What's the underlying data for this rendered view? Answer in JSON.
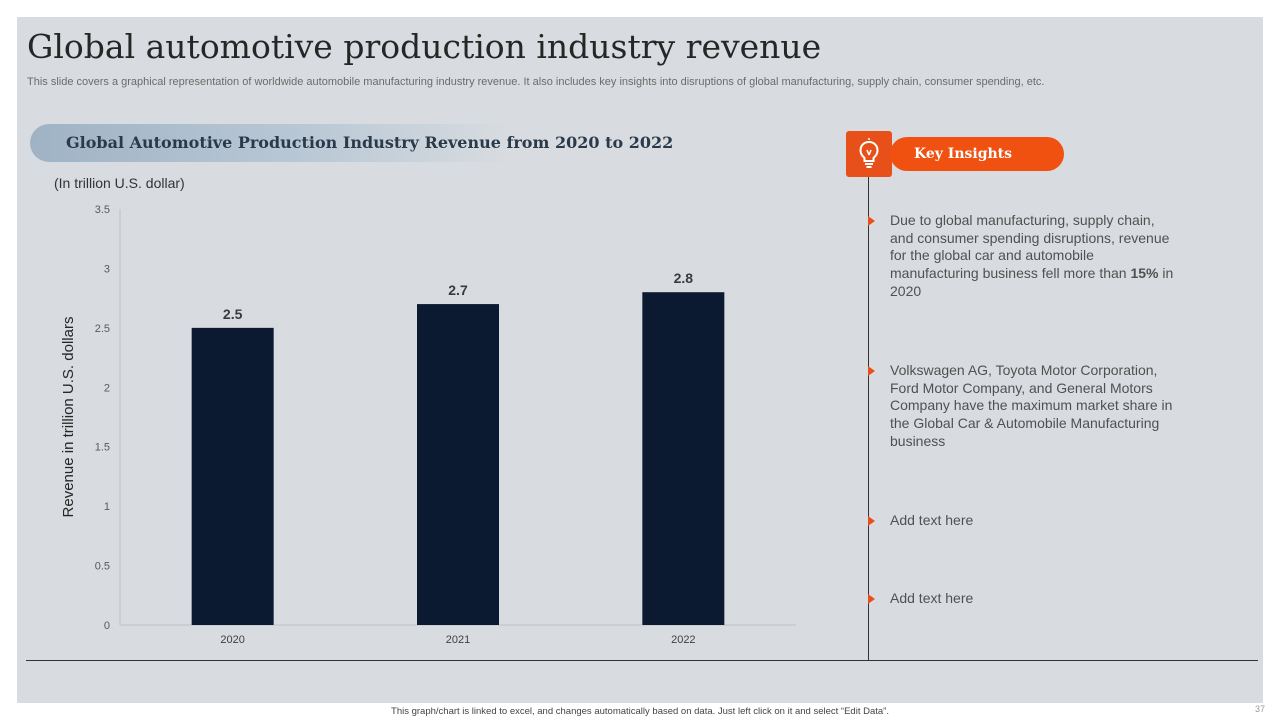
{
  "slide": {
    "title": "Global automotive production industry revenue",
    "subtitle": "This slide covers a graphical representation of worldwide automobile manufacturing industry revenue. It also includes key insights into disruptions of global manufacturing, supply chain, consumer spending, etc.",
    "footer_note": "This graph/chart is linked to excel, and changes automatically based on data. Just left click on it and select “Edit Data”.",
    "page_number": "37"
  },
  "chart_section": {
    "banner_title": "Global Automotive Production Industry Revenue from 2020 to 2022",
    "unit_note": "(In trillion U.S. dollar)"
  },
  "chart_data": {
    "type": "bar",
    "categories": [
      "2020",
      "2021",
      "2022"
    ],
    "values": [
      2.5,
      2.7,
      2.8
    ],
    "data_labels": [
      "2.5",
      "2.7",
      "2.8"
    ],
    "title": "Global Automotive Production Industry Revenue from 2020 to 2022",
    "xlabel": "",
    "ylabel": "Revenue in trillion U.S. dollars",
    "ylim": [
      0,
      3.5
    ],
    "yticks": [
      0,
      0.5,
      1,
      1.5,
      2,
      2.5,
      3,
      3.5
    ],
    "ytick_labels": [
      "0",
      "0.5",
      "1",
      "1.5",
      "2",
      "2.5",
      "3",
      "3.5"
    ],
    "bar_color": "#0b1a30",
    "grid": false
  },
  "insights": {
    "header": "Key Insights",
    "icon": "lightbulb-icon",
    "accent_color": "#f05010",
    "items": [
      {
        "before": "Due to global manufacturing, supply chain, and consumer spending disruptions, revenue for the global car and automobile manufacturing business fell more than ",
        "bold": "15%",
        "after": " in 2020"
      },
      {
        "text": "Volkswagen AG, Toyota Motor Corporation, Ford Motor Company, and General Motors Company have the maximum market share in the Global Car & Automobile Manufacturing business"
      },
      {
        "text": "Add text here"
      },
      {
        "text": "Add text here"
      }
    ]
  }
}
